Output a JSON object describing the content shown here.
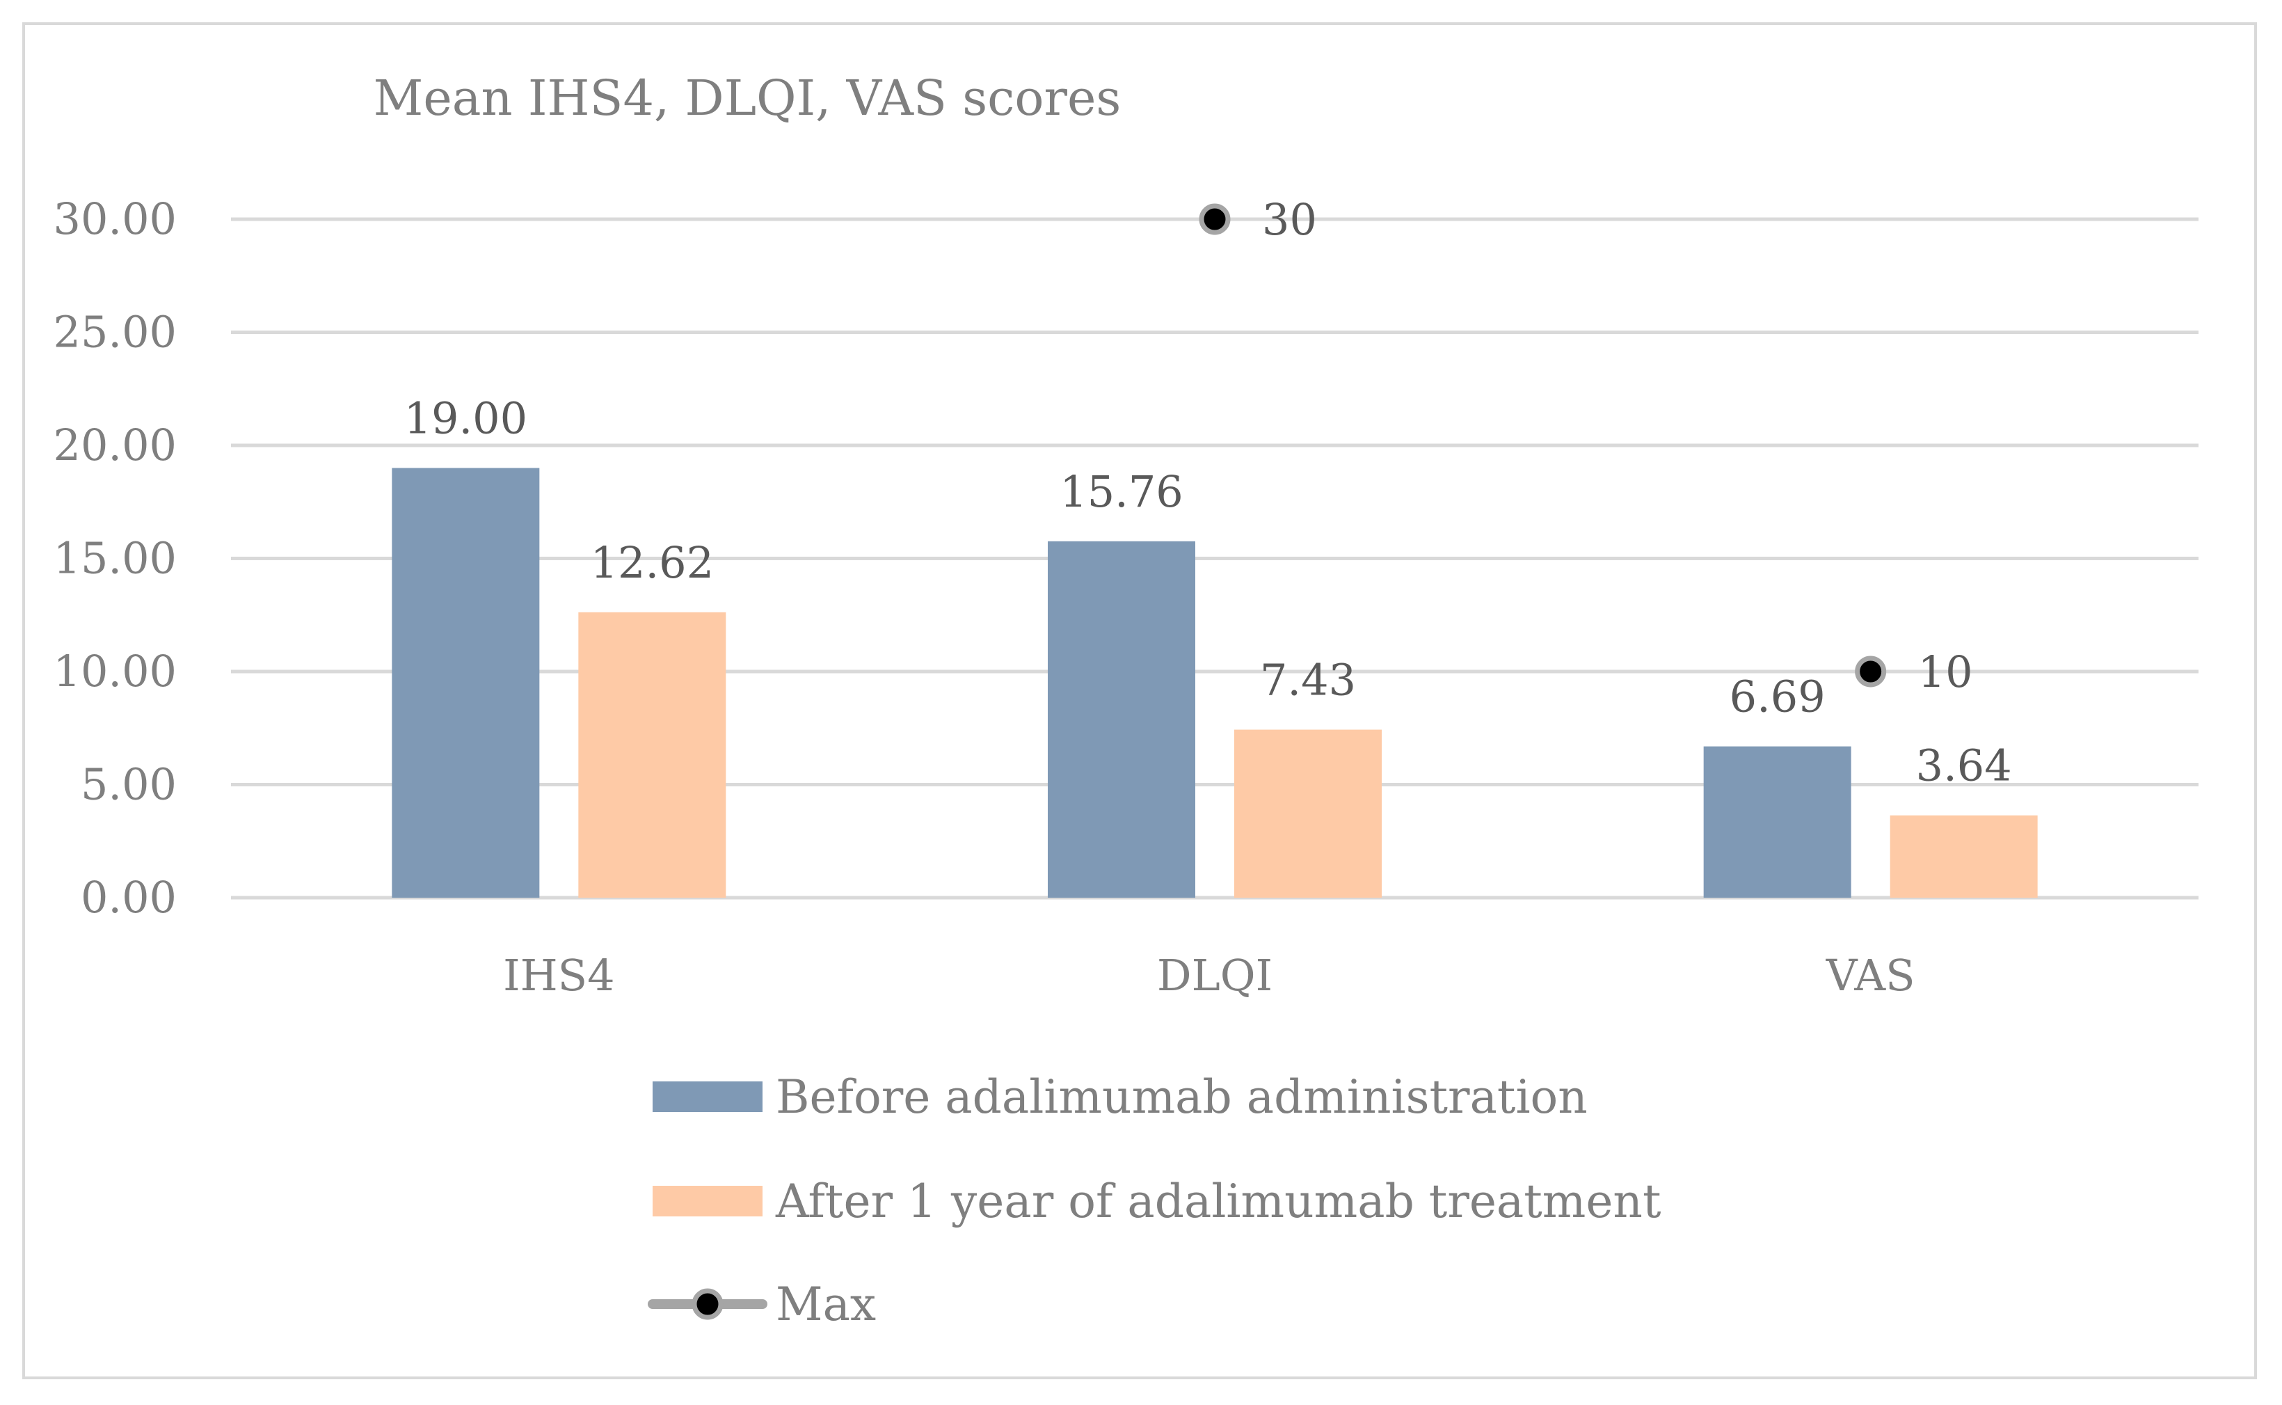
{
  "chart_data": {
    "type": "bar",
    "title": "Mean IHS4, DLQI, VAS scores",
    "categories": [
      "IHS4",
      "DLQI",
      "VAS"
    ],
    "series": [
      {
        "name": "Before adalimumab administration",
        "type": "bar",
        "color": "#7f99b5",
        "values": [
          19.0,
          15.76,
          6.69
        ],
        "labels": [
          "19.00",
          "15.76",
          "6.69"
        ]
      },
      {
        "name": "After 1 year of adalimumab treatment",
        "type": "bar",
        "color": "#fecaa6",
        "values": [
          12.62,
          7.43,
          3.64
        ],
        "labels": [
          "12.62",
          "7.43",
          "3.64"
        ]
      },
      {
        "name": "Max",
        "type": "line-marker",
        "color": "#a5a5a5",
        "marker_color": "#000000",
        "values": [
          null,
          30,
          10
        ],
        "labels": [
          "",
          "30",
          "10"
        ]
      }
    ],
    "ylim": [
      0,
      30
    ],
    "yticks": [
      0,
      5,
      10,
      15,
      20,
      25,
      30
    ],
    "ytick_labels": [
      "0.00",
      "5.00",
      "10.00",
      "15.00",
      "20.00",
      "25.00",
      "30.00"
    ],
    "xlabel": "",
    "ylabel": "",
    "grid": true,
    "legend_position": "bottom"
  }
}
